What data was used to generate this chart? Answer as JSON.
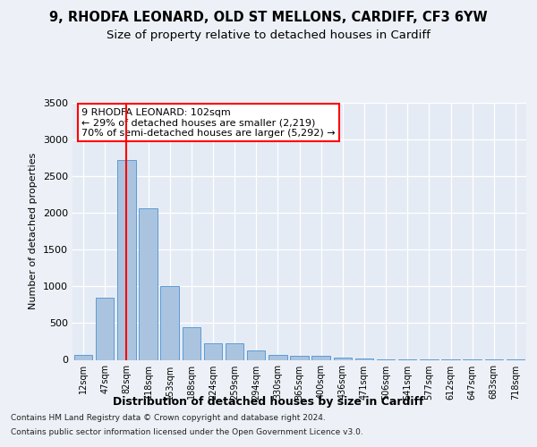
{
  "title1": "9, RHODFA LEONARD, OLD ST MELLONS, CARDIFF, CF3 6YW",
  "title2": "Size of property relative to detached houses in Cardiff",
  "xlabel": "Distribution of detached houses by size in Cardiff",
  "ylabel": "Number of detached properties",
  "categories": [
    "12sqm",
    "47sqm",
    "82sqm",
    "118sqm",
    "153sqm",
    "188sqm",
    "224sqm",
    "259sqm",
    "294sqm",
    "330sqm",
    "365sqm",
    "400sqm",
    "436sqm",
    "471sqm",
    "506sqm",
    "541sqm",
    "577sqm",
    "612sqm",
    "647sqm",
    "683sqm",
    "718sqm"
  ],
  "values": [
    65,
    850,
    2720,
    2060,
    1000,
    450,
    220,
    220,
    130,
    65,
    55,
    55,
    30,
    20,
    10,
    8,
    5,
    3,
    2,
    1,
    1
  ],
  "bar_color": "#aac4e0",
  "bar_edge_color": "#5b9bd5",
  "red_line_index": 2,
  "ylim": [
    0,
    3500
  ],
  "yticks": [
    0,
    500,
    1000,
    1500,
    2000,
    2500,
    3000,
    3500
  ],
  "annotation_title": "9 RHODFA LEONARD: 102sqm",
  "annotation_line1": "← 29% of detached houses are smaller (2,219)",
  "annotation_line2": "70% of semi-detached houses are larger (5,292) →",
  "footnote1": "Contains HM Land Registry data © Crown copyright and database right 2024.",
  "footnote2": "Contains public sector information licensed under the Open Government Licence v3.0.",
  "bg_color": "#edf1f7",
  "plot_bg_color": "#e5ebf4",
  "grid_color": "#ffffff",
  "title1_fontsize": 10.5,
  "title2_fontsize": 9.5
}
